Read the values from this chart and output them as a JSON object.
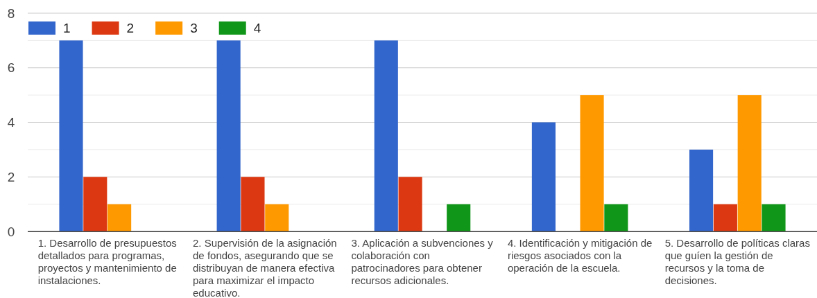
{
  "chart_data": {
    "type": "bar",
    "categories": [
      "1. Desarrollo de presupuestos detallados para programas, proyectos y mantenimiento de instalaciones.",
      "2. Supervisión de la asignación de fondos, asegurando que se distribuyan de manera efectiva para maximizar el impacto educativo.",
      "3. Aplicación a subvenciones y colaboración con patrocinadores para obtener recursos adicionales.",
      "4. Identificación y mitigación de riesgos asociados con la operación de la escuela.",
      "5. Desarrollo de políticas claras que guíen la gestión de recursos y la toma de decisiones."
    ],
    "series": [
      {
        "name": "1",
        "color": "#3366cc",
        "values": [
          7,
          7,
          7,
          4,
          3
        ]
      },
      {
        "name": "2",
        "color": "#dc3912",
        "values": [
          2,
          2,
          2,
          0,
          1
        ]
      },
      {
        "name": "3",
        "color": "#ff9900",
        "values": [
          1,
          1,
          0,
          5,
          5
        ]
      },
      {
        "name": "4",
        "color": "#109618",
        "values": [
          0,
          0,
          1,
          1,
          1
        ]
      }
    ],
    "ylim": [
      0,
      8
    ],
    "yticks": [
      0,
      {
        "value": 1,
        "label": null
      },
      2,
      {
        "value": 3,
        "label": null
      },
      4,
      {
        "value": 5,
        "label": null
      },
      6,
      {
        "value": 7,
        "label": null
      },
      8
    ],
    "grid": true,
    "legend": "top left"
  }
}
